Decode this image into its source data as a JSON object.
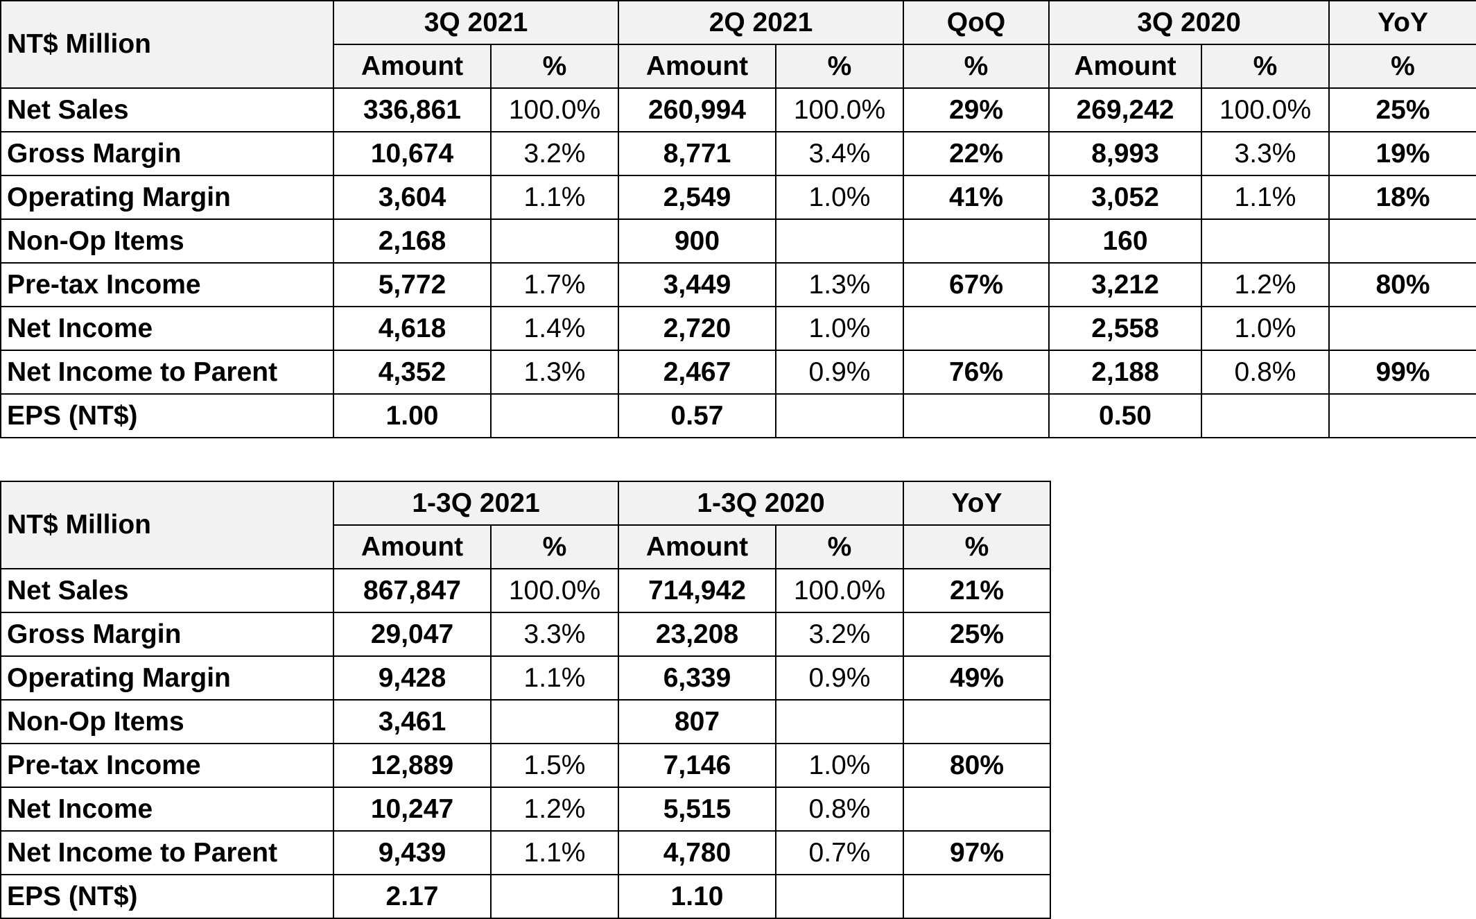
{
  "quarterly": {
    "corner": "NT$ Million",
    "periods": [
      "3Q 2021",
      "2Q 2021",
      "QoQ",
      "3Q 2020",
      "YoY"
    ],
    "subheaders": [
      "Amount",
      "%",
      "Amount",
      "%",
      "%",
      "Amount",
      "%",
      "%"
    ],
    "rows": [
      {
        "label": "Net Sales",
        "cells": [
          "336,861",
          "100.0%",
          "260,994",
          "100.0%",
          "29%",
          "269,242",
          "100.0%",
          "25%"
        ]
      },
      {
        "label": "Gross Margin",
        "cells": [
          "10,674",
          "3.2%",
          "8,771",
          "3.4%",
          "22%",
          "8,993",
          "3.3%",
          "19%"
        ]
      },
      {
        "label": "Operating Margin",
        "cells": [
          "3,604",
          "1.1%",
          "2,549",
          "1.0%",
          "41%",
          "3,052",
          "1.1%",
          "18%"
        ]
      },
      {
        "label": "Non-Op Items",
        "cells": [
          "2,168",
          "",
          "900",
          "",
          "",
          "160",
          "",
          ""
        ]
      },
      {
        "label": "Pre-tax Income",
        "cells": [
          "5,772",
          "1.7%",
          "3,449",
          "1.3%",
          "67%",
          "3,212",
          "1.2%",
          "80%"
        ]
      },
      {
        "label": "Net Income",
        "cells": [
          "4,618",
          "1.4%",
          "2,720",
          "1.0%",
          "",
          "2,558",
          "1.0%",
          ""
        ]
      },
      {
        "label": "Net Income to Parent",
        "cells": [
          "4,352",
          "1.3%",
          "2,467",
          "0.9%",
          "76%",
          "2,188",
          "0.8%",
          "99%"
        ]
      },
      {
        "label": "EPS (NT$)",
        "cells": [
          "1.00",
          "",
          "0.57",
          "",
          "",
          "0.50",
          "",
          ""
        ]
      }
    ]
  },
  "ytd": {
    "corner": "NT$ Million",
    "periods": [
      "1-3Q 2021",
      "1-3Q 2020",
      "YoY"
    ],
    "subheaders": [
      "Amount",
      "%",
      "Amount",
      "%",
      "%"
    ],
    "rows": [
      {
        "label": "Net Sales",
        "cells": [
          "867,847",
          "100.0%",
          "714,942",
          "100.0%",
          "21%"
        ]
      },
      {
        "label": "Gross Margin",
        "cells": [
          "29,047",
          "3.3%",
          "23,208",
          "3.2%",
          "25%"
        ]
      },
      {
        "label": "Operating Margin",
        "cells": [
          "9,428",
          "1.1%",
          "6,339",
          "0.9%",
          "49%"
        ]
      },
      {
        "label": "Non-Op Items",
        "cells": [
          "3,461",
          "",
          "807",
          "",
          ""
        ]
      },
      {
        "label": "Pre-tax Income",
        "cells": [
          "12,889",
          "1.5%",
          "7,146",
          "1.0%",
          "80%"
        ]
      },
      {
        "label": "Net Income",
        "cells": [
          "10,247",
          "1.2%",
          "5,515",
          "0.8%",
          ""
        ]
      },
      {
        "label": "Net Income to Parent",
        "cells": [
          "9,439",
          "1.1%",
          "4,780",
          "0.7%",
          "97%"
        ]
      },
      {
        "label": "EPS (NT$)",
        "cells": [
          "2.17",
          "",
          "1.10",
          "",
          ""
        ]
      }
    ]
  }
}
